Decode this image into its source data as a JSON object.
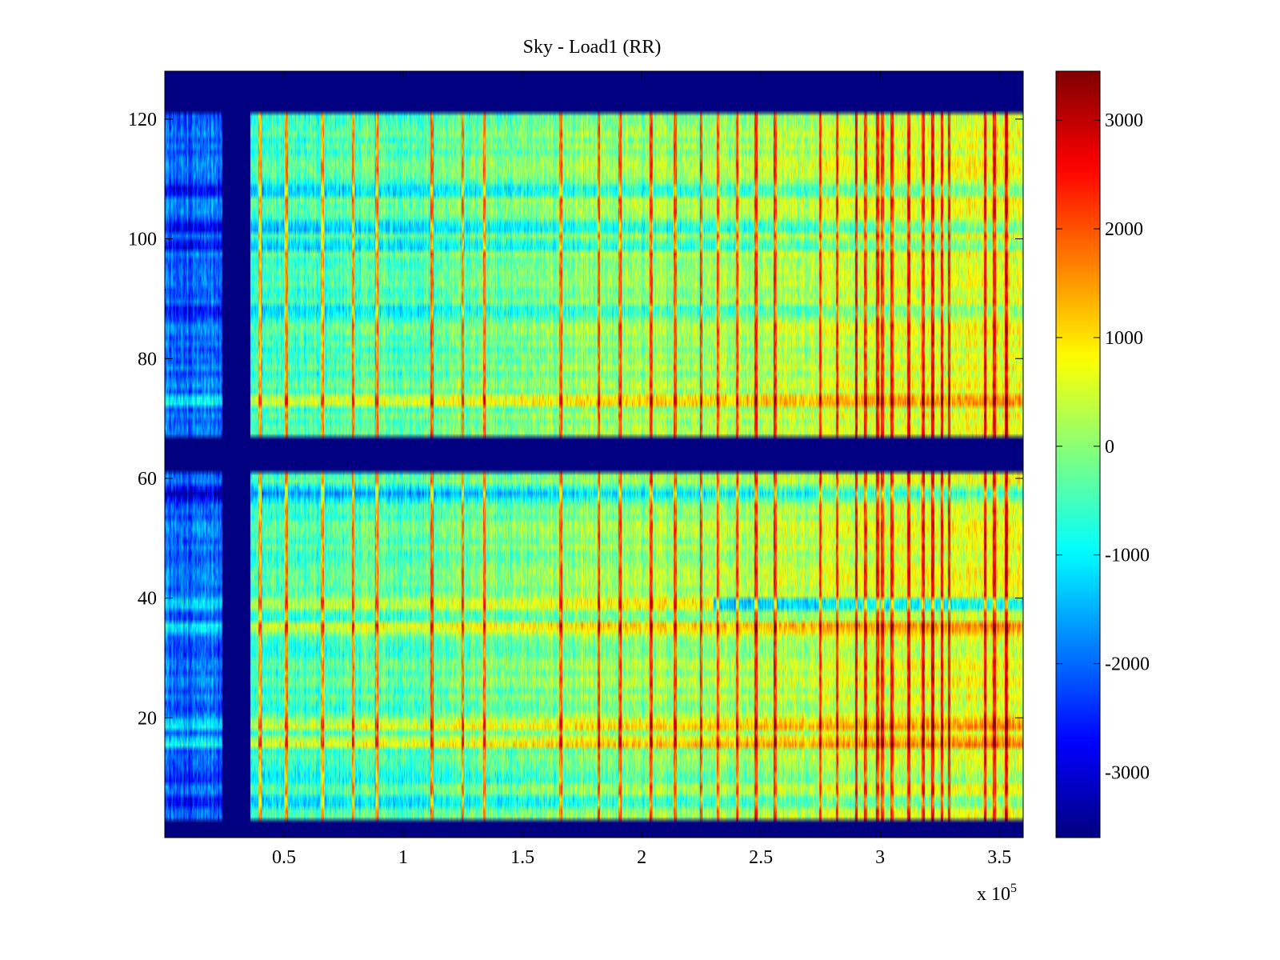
{
  "chart_data": {
    "type": "heatmap",
    "title": "Sky - Load1 (RR)",
    "xlabel": "",
    "ylabel": "",
    "x_multiplier_text": "x 10",
    "x_multiplier_exp": "5",
    "xlim": [
      0,
      3.6
    ],
    "ylim": [
      0,
      128
    ],
    "x_ticks": [
      0.5,
      1,
      1.5,
      2,
      2.5,
      3,
      3.5
    ],
    "x_tick_labels": [
      "0.5",
      "1",
      "1.5",
      "2",
      "2.5",
      "3",
      "3.5"
    ],
    "y_ticks": [
      20,
      40,
      60,
      80,
      100,
      120
    ],
    "y_tick_labels": [
      "20",
      "40",
      "60",
      "80",
      "100",
      "120"
    ],
    "colorbar": {
      "colormap": "jet",
      "clim": [
        -3600,
        3450
      ],
      "ticks": [
        -3000,
        -2000,
        -1000,
        0,
        1000,
        2000,
        3000
      ],
      "tick_labels": [
        "-3000",
        "-2000",
        "-1000",
        "0",
        "1000",
        "2000",
        "3000"
      ]
    },
    "masked_regions": {
      "rows_y": [
        [
          0,
          3
        ],
        [
          61,
          67
        ],
        [
          121,
          128
        ]
      ],
      "column_x": [
        0.24,
        0.36
      ],
      "mask_value": -3600
    },
    "features": {
      "base_value_low_x": -700,
      "base_value_high_x": 700,
      "low_x_region_end": 0.24,
      "low_x_region_value": -2000,
      "hot_columns_x": [
        0.4,
        0.51,
        0.66,
        0.79,
        0.89,
        1.12,
        1.25,
        1.34,
        1.66,
        1.82,
        1.91,
        2.04,
        2.14,
        2.25,
        2.32,
        2.4,
        2.48,
        2.56,
        2.75,
        2.82,
        2.9,
        2.94,
        2.99,
        3.01,
        3.05,
        3.12,
        3.18,
        3.22,
        3.26,
        3.29,
        3.44,
        3.48,
        3.53
      ],
      "warm_rows_y": [
        16,
        19,
        35,
        39,
        73
      ],
      "cool_rows_y": [
        6,
        10,
        57,
        58,
        88,
        99,
        102,
        108
      ],
      "cool_row_y_high_x": 39
    }
  },
  "colors": {
    "mask": "#00008f",
    "axis": "#000000",
    "background": "#ffffff"
  }
}
